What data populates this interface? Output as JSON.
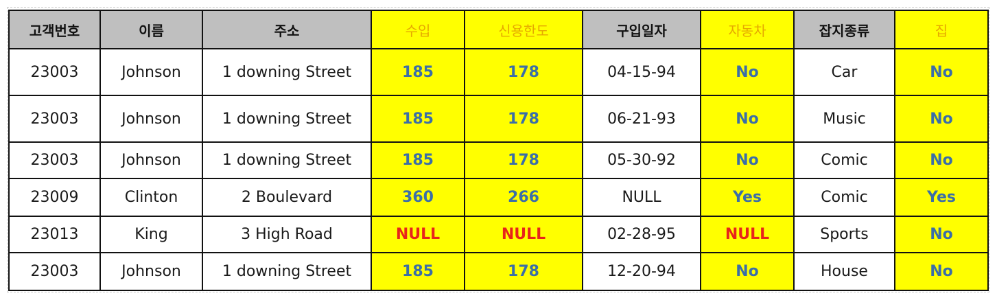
{
  "columns": [
    {
      "label": "고객번호",
      "highlight": false
    },
    {
      "label": "이름",
      "highlight": false
    },
    {
      "label": "주소",
      "highlight": false
    },
    {
      "label": "수입",
      "highlight": true
    },
    {
      "label": "신용한도",
      "highlight": true
    },
    {
      "label": "구입일자",
      "highlight": false
    },
    {
      "label": "자동차",
      "highlight": true
    },
    {
      "label": "잡지종류",
      "highlight": false
    },
    {
      "label": "집",
      "highlight": true
    }
  ],
  "rows": [
    [
      "23003",
      "Johnson",
      "1 downing Street",
      "185",
      "178",
      "04-15-94",
      "No",
      "Car",
      "No"
    ],
    [
      "23003",
      "Johnson",
      "1 downing Street",
      "185",
      "178",
      "06-21-93",
      "No",
      "Music",
      "No"
    ],
    [
      "23003",
      "Johnson",
      "1 downing Street",
      "185",
      "178",
      "05-30-92",
      "No",
      "Comic",
      "No"
    ],
    [
      "23009",
      "Clinton",
      "2 Boulevard",
      "360",
      "266",
      "NULL",
      "Yes",
      "Comic",
      "Yes"
    ],
    [
      "23013",
      "King",
      "3 High Road",
      "NULL",
      "NULL",
      "02-28-95",
      "NULL",
      "Sports",
      "No"
    ],
    [
      "23003",
      "Johnson",
      "1 downing Street",
      "185",
      "178",
      "12-20-94",
      "No",
      "House",
      "No"
    ]
  ],
  "colors": {
    "header_bg": "#bfbfbf",
    "highlight_bg": "#ffff00",
    "highlight_header_text": "#e6a800",
    "highlight_value_text": "#3b6ea8",
    "null_text": "#e8231b"
  }
}
